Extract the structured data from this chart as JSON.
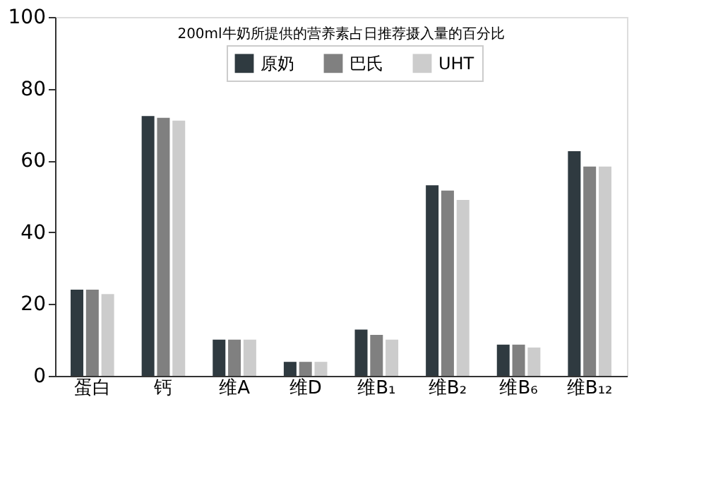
{
  "chart_data": {
    "type": "bar",
    "title": "200ml牛奶所提供的营养素占日推荐摄入量的百分比",
    "categories": [
      "蛋白",
      "钙",
      "维A",
      "维D",
      "维B₁",
      "维B₂",
      "维B₆",
      "维B₁₂"
    ],
    "series": [
      {
        "name": "原奶",
        "color": "#2f3a40",
        "values": [
          24,
          72.4,
          10.1,
          3.9,
          12.9,
          53.1,
          8.7,
          62.6
        ]
      },
      {
        "name": "巴氏",
        "color": "#808080",
        "values": [
          24,
          71.9,
          10.1,
          3.9,
          11.4,
          51.6,
          8.7,
          58.3
        ]
      },
      {
        "name": "UHT",
        "color": "#cccccc",
        "values": [
          22.8,
          71.1,
          10.1,
          3.9,
          10.1,
          49.0,
          7.9,
          58.3
        ]
      }
    ],
    "ylim": [
      0,
      100
    ],
    "yticks": [
      0,
      20,
      40,
      60,
      80,
      100
    ],
    "grid": false,
    "legend": "top"
  }
}
